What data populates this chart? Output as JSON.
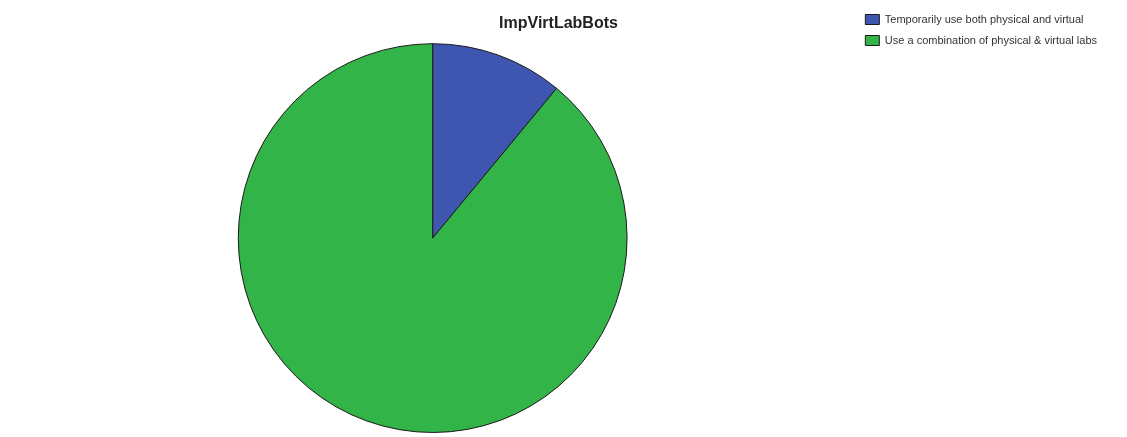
{
  "chart_data": {
    "type": "pie",
    "title": "ImpVirtLabBots",
    "categories": [
      "Temporarily use both physical and virtual",
      "Use a combination of physical & virtual labs"
    ],
    "values": [
      11,
      89
    ],
    "colors": [
      "#3f56b0",
      "#33b449"
    ],
    "legend": "top right"
  }
}
